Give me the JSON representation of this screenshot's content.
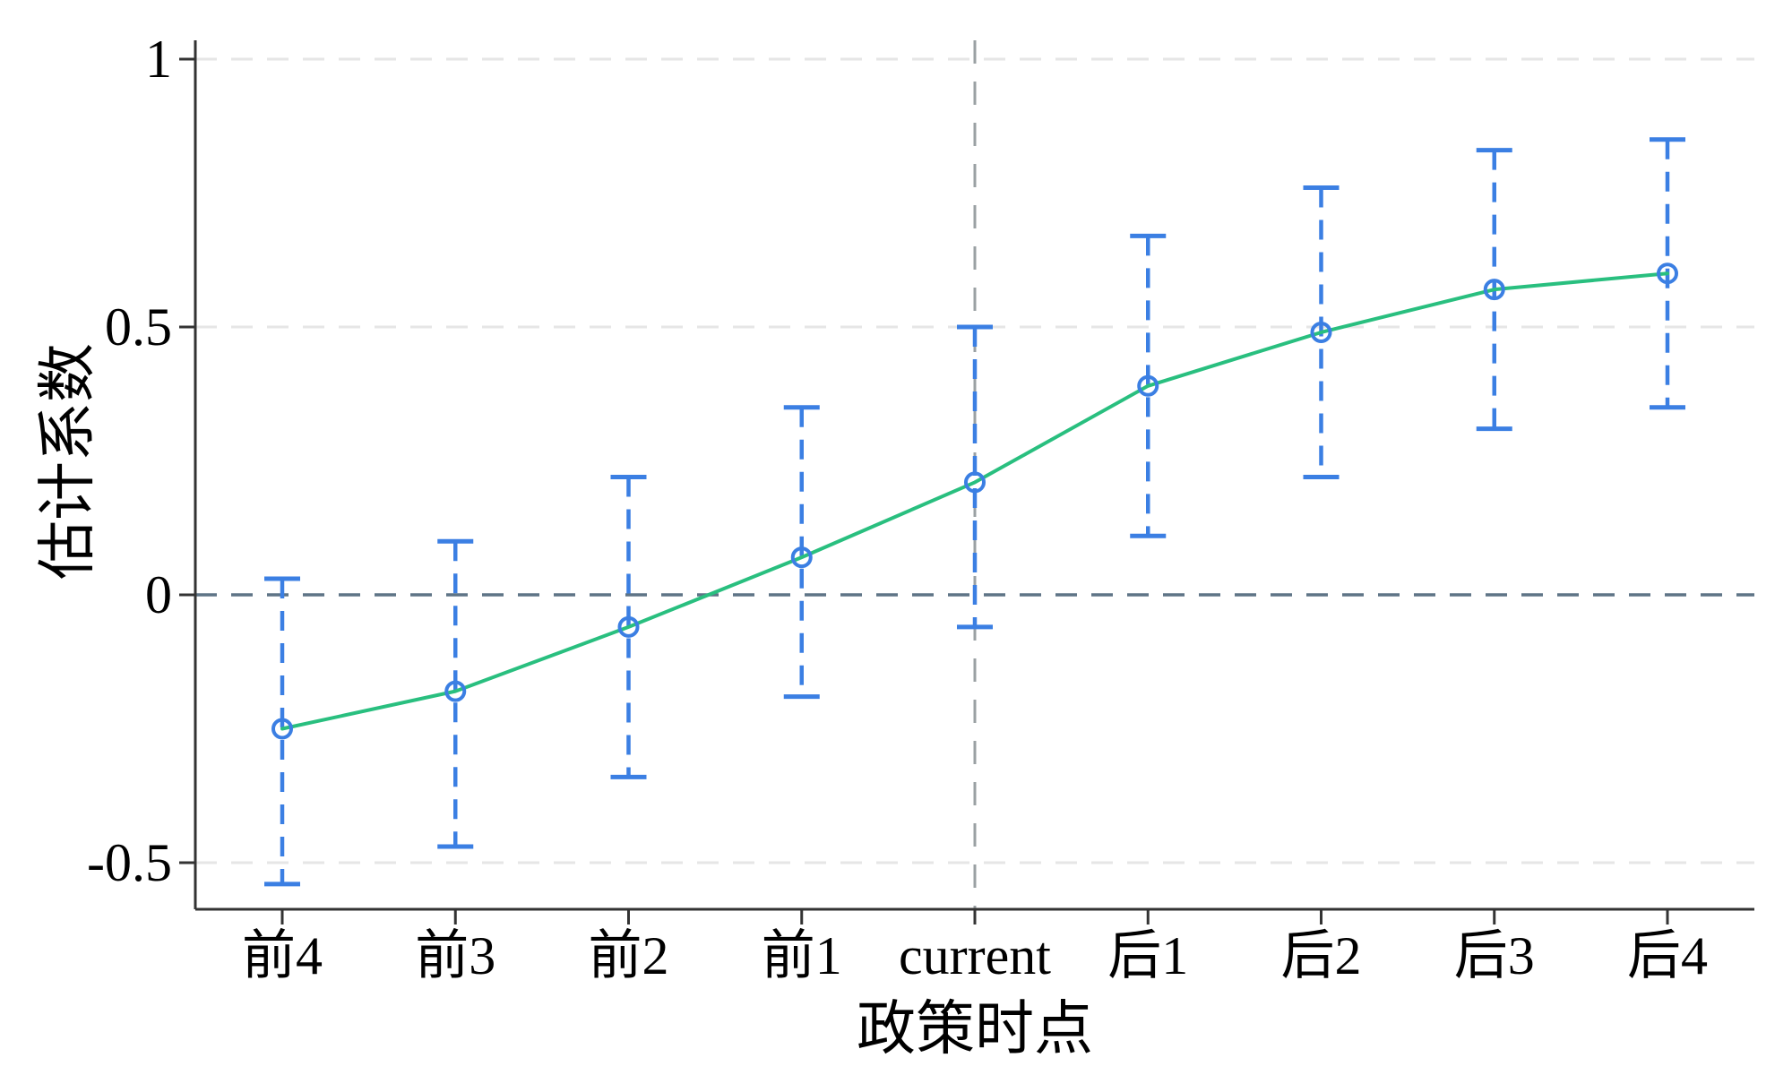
{
  "chart_data": {
    "type": "line",
    "title": "",
    "categories": [
      "前4",
      "前3",
      "前2",
      "前1",
      "current",
      "后1",
      "后2",
      "后3",
      "后4"
    ],
    "series": [
      {
        "name": "估计系数",
        "values": [
          -0.25,
          -0.18,
          -0.06,
          0.07,
          0.21,
          0.39,
          0.49,
          0.57,
          0.6
        ]
      }
    ],
    "ci_low": [
      -0.54,
      -0.47,
      -0.34,
      -0.19,
      -0.06,
      0.11,
      0.22,
      0.31,
      0.35
    ],
    "ci_high": [
      0.03,
      0.1,
      0.22,
      0.35,
      0.5,
      0.67,
      0.76,
      0.83,
      0.85
    ],
    "xlabel": "政策时点",
    "ylabel": "估计系数",
    "yticks": [
      1,
      0.5,
      0,
      -0.5
    ],
    "ytick_labels": [
      "1",
      "0.5",
      "0",
      "-0.5"
    ],
    "ylim": [
      -0.59,
      1.04
    ],
    "reference_category": "current",
    "zero_line_value": 0,
    "grid": "horizontal-dashed",
    "legend_position": "none",
    "colors": {
      "line": "#29bf7f",
      "marker": "#3b7fe3",
      "error_bar": "#3b7fe3",
      "zero_line": "#5e7486",
      "vertical_reference_line": "#9aa0a3",
      "gridline": "#e6e6e6",
      "axis": "#333333",
      "text": "#000000",
      "background": "#ffffff"
    }
  }
}
